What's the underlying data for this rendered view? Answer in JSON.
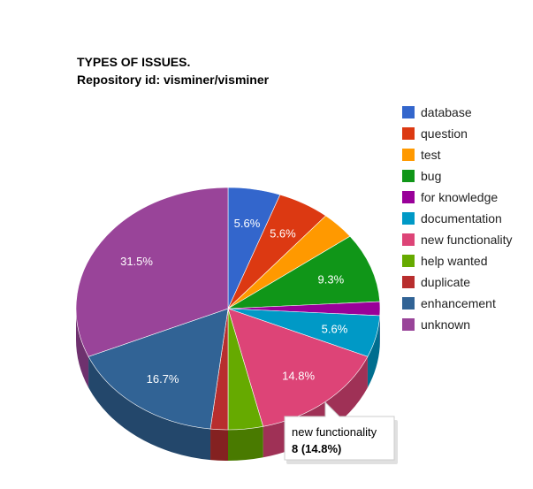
{
  "chart_data": {
    "type": "pie",
    "title": "TYPES OF ISSUES.",
    "subtitle": "Repository id: visminer/visminer",
    "legend_position": "right",
    "slices": [
      {
        "label": "database",
        "value": 3,
        "percent_label": "5.6%",
        "color": "#3366cc"
      },
      {
        "label": "question",
        "value": 3,
        "percent_label": "5.6%",
        "color": "#dc3912"
      },
      {
        "label": "test",
        "value": 2,
        "percent_label": "",
        "color": "#ff9900"
      },
      {
        "label": "bug",
        "value": 5,
        "percent_label": "9.3%",
        "color": "#109618"
      },
      {
        "label": "for knowledge",
        "value": 1,
        "percent_label": "",
        "color": "#990099"
      },
      {
        "label": "documentation",
        "value": 3,
        "percent_label": "5.6%",
        "color": "#0099c6"
      },
      {
        "label": "new functionality",
        "value": 8,
        "percent_label": "14.8%",
        "color": "#dd4477"
      },
      {
        "label": "help wanted",
        "value": 2,
        "percent_label": "",
        "color": "#66aa00"
      },
      {
        "label": "duplicate",
        "value": 1,
        "percent_label": "",
        "color": "#b82e2e"
      },
      {
        "label": "enhancement",
        "value": 9,
        "percent_label": "16.7%",
        "color": "#316395"
      },
      {
        "label": "unknown",
        "value": 17,
        "percent_label": "31.5%",
        "color": "#994499"
      }
    ],
    "tooltip": {
      "label": "new functionality",
      "value_text": "8 (14.8%)",
      "slice": "new functionality"
    }
  }
}
